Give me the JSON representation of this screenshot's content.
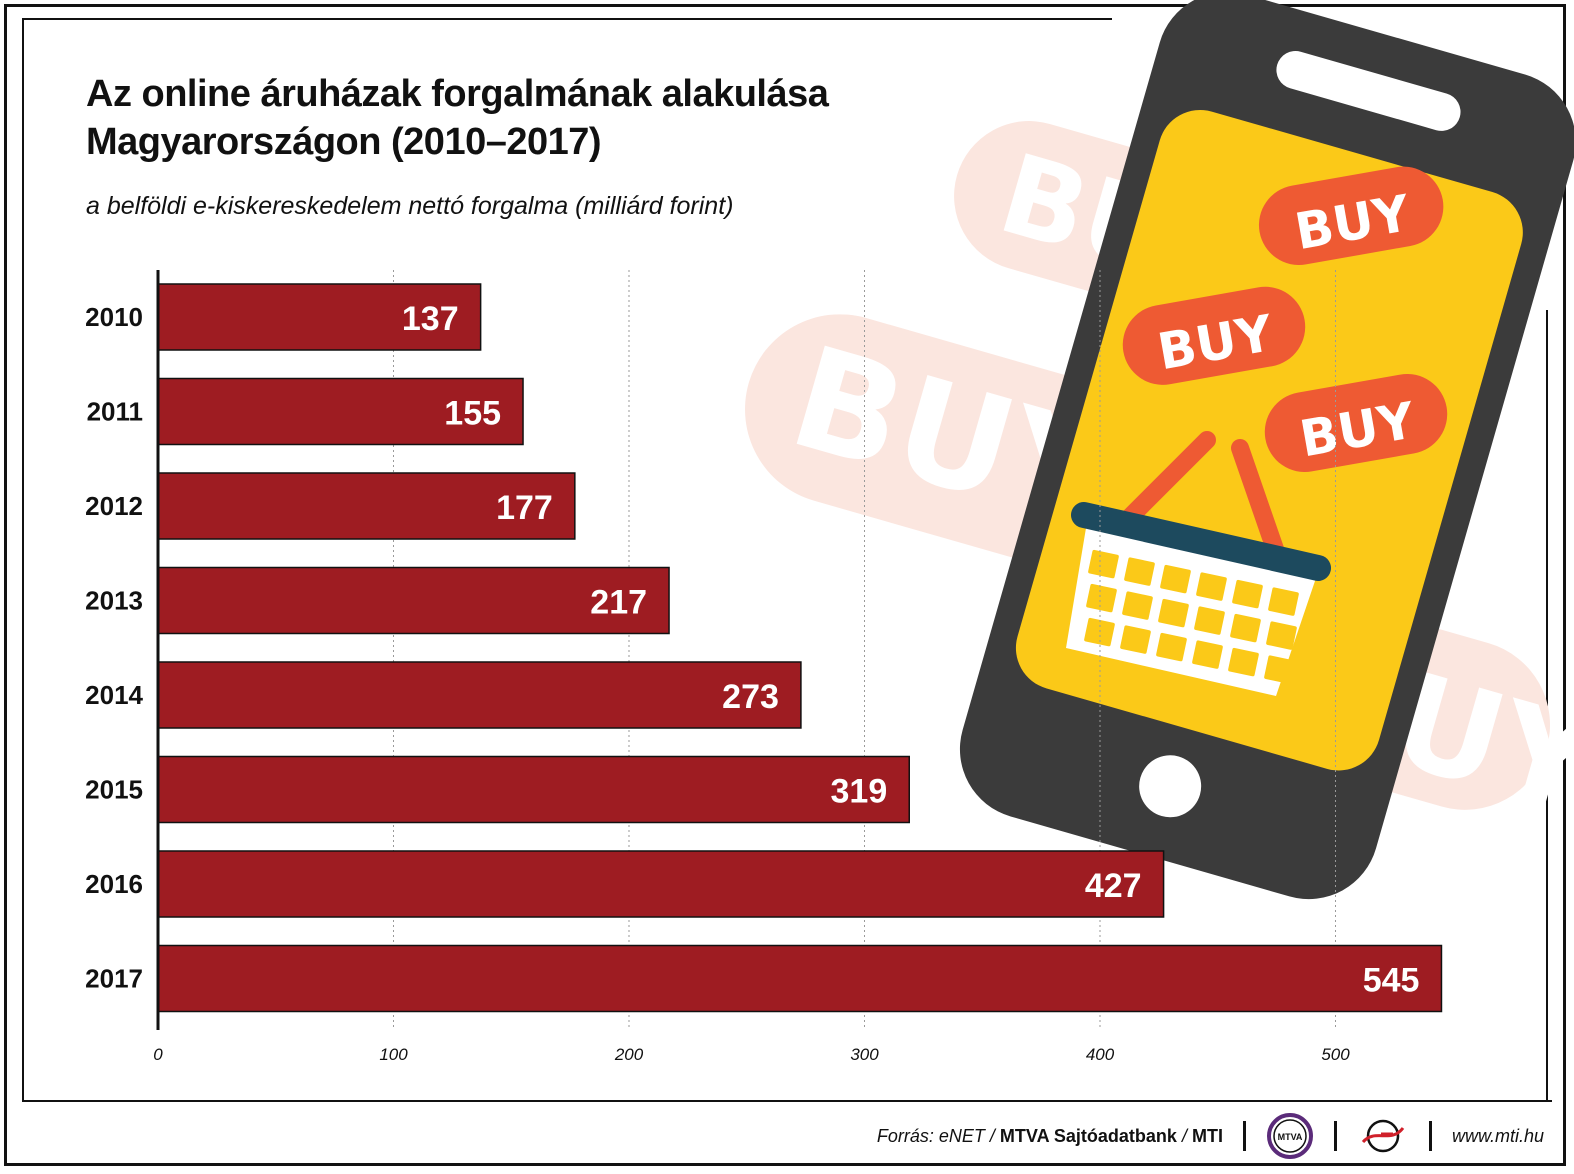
{
  "title_lines": [
    "Az online áruházak forgalmának alakulása",
    "Magyarországon (2010–2017)"
  ],
  "subtitle": "a belföldi e-kiskereskedelem nettó forgalma (milliárd forint)",
  "chart_data": {
    "type": "bar",
    "orientation": "horizontal",
    "title": "Az online áruházak forgalmának alakulása Magyarországon (2010–2017)",
    "subtitle": "a belföldi e-kiskereskedelem nettó forgalma (milliárd forint)",
    "categories": [
      "2010",
      "2011",
      "2012",
      "2013",
      "2014",
      "2015",
      "2016",
      "2017"
    ],
    "values": [
      137,
      155,
      177,
      217,
      273,
      319,
      427,
      545
    ],
    "xlim": [
      0,
      560
    ],
    "xticks": [
      0,
      100,
      200,
      300,
      400,
      500
    ],
    "grid": "vertical dotted",
    "bar_color": "#9e1c22",
    "data_labels": true
  },
  "illustration": {
    "buy_labels": [
      "BUY",
      "BUY",
      "BUY"
    ],
    "faded_buy_labels": [
      "BUY",
      "BUY",
      "BUY"
    ],
    "colors": {
      "phone_body": "#3b3b3b",
      "screen": "#fbc918",
      "buy_badge": "#ee5a33",
      "faded_badge": "#fbe6df",
      "basket_rim": "#1d4a5e"
    }
  },
  "footer": {
    "source_prefix": "Forrás: eNET /",
    "source_bold_1": "MTVA Sajtóadatbank",
    "source_slash": "/",
    "source_bold_2": "MTI",
    "logo_mtva_text": "MTVA",
    "url": "www.mti.hu"
  }
}
